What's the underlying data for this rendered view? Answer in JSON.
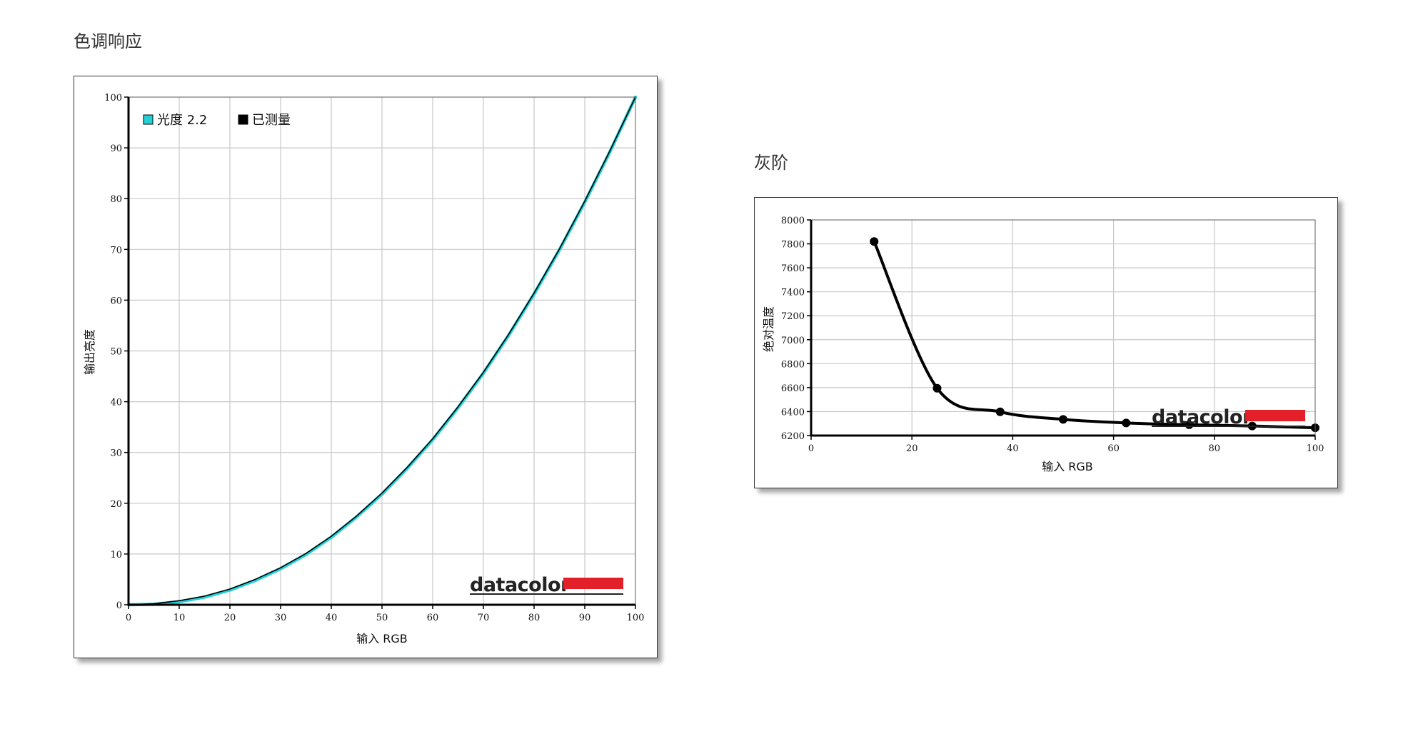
{
  "sections": {
    "tone_title": "色调响应",
    "gray_title": "灰阶"
  },
  "brand": {
    "text": "datacolor",
    "bar_color": "#e3202a"
  },
  "chart_data": [
    {
      "type": "line",
      "title": "",
      "xlabel": "输入 RGB",
      "ylabel": "输出亮度",
      "xlim": [
        0,
        100
      ],
      "ylim": [
        0,
        100
      ],
      "xticks": [
        0,
        10,
        20,
        30,
        40,
        50,
        60,
        70,
        80,
        90,
        100
      ],
      "yticks": [
        0,
        10,
        20,
        30,
        40,
        50,
        60,
        70,
        80,
        90,
        100
      ],
      "grid": true,
      "legend_position": "top-left",
      "series": [
        {
          "name": "光度 2.2",
          "color": "#22d0d6",
          "x": [
            0,
            5,
            10,
            15,
            20,
            25,
            30,
            35,
            40,
            45,
            50,
            55,
            60,
            65,
            70,
            75,
            80,
            85,
            90,
            95,
            100
          ],
          "y": [
            0,
            0.1,
            0.6,
            1.5,
            2.9,
            4.8,
            7.1,
            9.9,
            13.3,
            17.3,
            21.8,
            26.9,
            32.5,
            38.8,
            45.6,
            53.1,
            61.2,
            69.9,
            79.3,
            89.3,
            100
          ]
        },
        {
          "name": "已测量",
          "color": "#000000",
          "x": [
            0,
            5,
            10,
            15,
            20,
            25,
            30,
            35,
            40,
            45,
            50,
            55,
            60,
            65,
            70,
            75,
            80,
            85,
            90,
            95,
            100
          ],
          "y": [
            0,
            0.2,
            0.8,
            1.7,
            3.1,
            5.0,
            7.3,
            10.1,
            13.5,
            17.5,
            22.0,
            27.1,
            32.7,
            39.0,
            45.8,
            53.3,
            61.4,
            70.1,
            79.5,
            89.5,
            100
          ]
        }
      ]
    },
    {
      "type": "line",
      "title": "",
      "xlabel": "输入 RGB",
      "ylabel": "绝对温度",
      "xlim": [
        0,
        100
      ],
      "ylim": [
        6200,
        8000
      ],
      "xticks": [
        0,
        20,
        40,
        60,
        80,
        100
      ],
      "yticks": [
        6200,
        6400,
        6600,
        6800,
        7000,
        7200,
        7400,
        7600,
        7800,
        8000
      ],
      "grid": true,
      "series": [
        {
          "color": "#000000",
          "x": [
            12.5,
            25,
            37.5,
            50,
            62.5,
            75,
            87.5,
            100
          ],
          "y": [
            7820,
            6595,
            6398,
            6335,
            6305,
            6290,
            6280,
            6265
          ]
        }
      ]
    }
  ]
}
